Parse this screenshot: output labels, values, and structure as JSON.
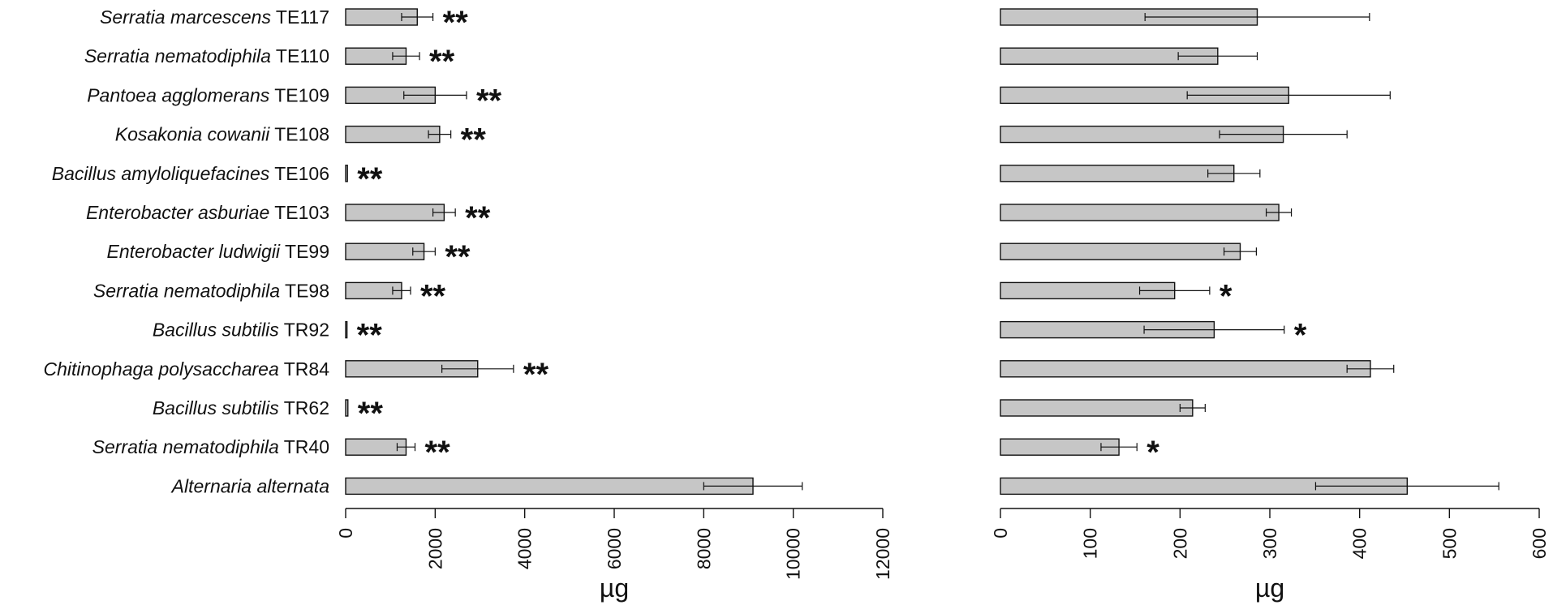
{
  "categories": [
    {
      "italic": "Serratia marcescens",
      "strain": "TE117"
    },
    {
      "italic": "Serratia nematodiphila",
      "strain": "TE110"
    },
    {
      "italic": "Pantoea agglomerans",
      "strain": "TE109"
    },
    {
      "italic": "Kosakonia cowanii",
      "strain": "TE108"
    },
    {
      "italic": "Bacillus amyloliquefacines",
      "strain": "TE106"
    },
    {
      "italic": "Enterobacter asburiae",
      "strain": "TE103"
    },
    {
      "italic": "Enterobacter ludwigii",
      "strain": "TE99"
    },
    {
      "italic": "Serratia nematodiphila",
      "strain": "TE98"
    },
    {
      "italic": "Bacillus subtilis",
      "strain": "TR92"
    },
    {
      "italic": "Chitinophaga polysaccharea",
      "strain": "TR84"
    },
    {
      "italic": "Bacillus subtilis",
      "strain": "TR62"
    },
    {
      "italic": "Serratia nematodiphila",
      "strain": "TR40"
    },
    {
      "italic": "Alternaria alternata",
      "strain": ""
    }
  ],
  "chart_data": [
    {
      "type": "bar",
      "orientation": "horizontal",
      "xlabel": "µg",
      "xlim": [
        0,
        12000
      ],
      "xticks": [
        0,
        2000,
        4000,
        6000,
        8000,
        10000,
        12000
      ],
      "values": [
        1600,
        1350,
        2000,
        2100,
        40,
        2200,
        1750,
        1250,
        30,
        2950,
        50,
        1350,
        9100
      ],
      "errors": [
        350,
        300,
        700,
        250,
        0,
        250,
        250,
        200,
        0,
        800,
        0,
        200,
        1100
      ],
      "significance": [
        "**",
        "**",
        "**",
        "**",
        "**",
        "**",
        "**",
        "**",
        "**",
        "**",
        "**",
        "**",
        ""
      ]
    },
    {
      "type": "bar",
      "orientation": "horizontal",
      "xlabel": "µg",
      "xlim": [
        0,
        600
      ],
      "xticks": [
        0,
        100,
        200,
        300,
        400,
        500,
        600
      ],
      "values": [
        286,
        242,
        321,
        315,
        260,
        310,
        267,
        194,
        238,
        412,
        214,
        132,
        453
      ],
      "errors": [
        125,
        44,
        113,
        71,
        29,
        14,
        18,
        39,
        78,
        26,
        14,
        20,
        102
      ],
      "significance": [
        "",
        "",
        "",
        "",
        "",
        "",
        "",
        "*",
        "*",
        "",
        "",
        "*",
        ""
      ]
    }
  ]
}
